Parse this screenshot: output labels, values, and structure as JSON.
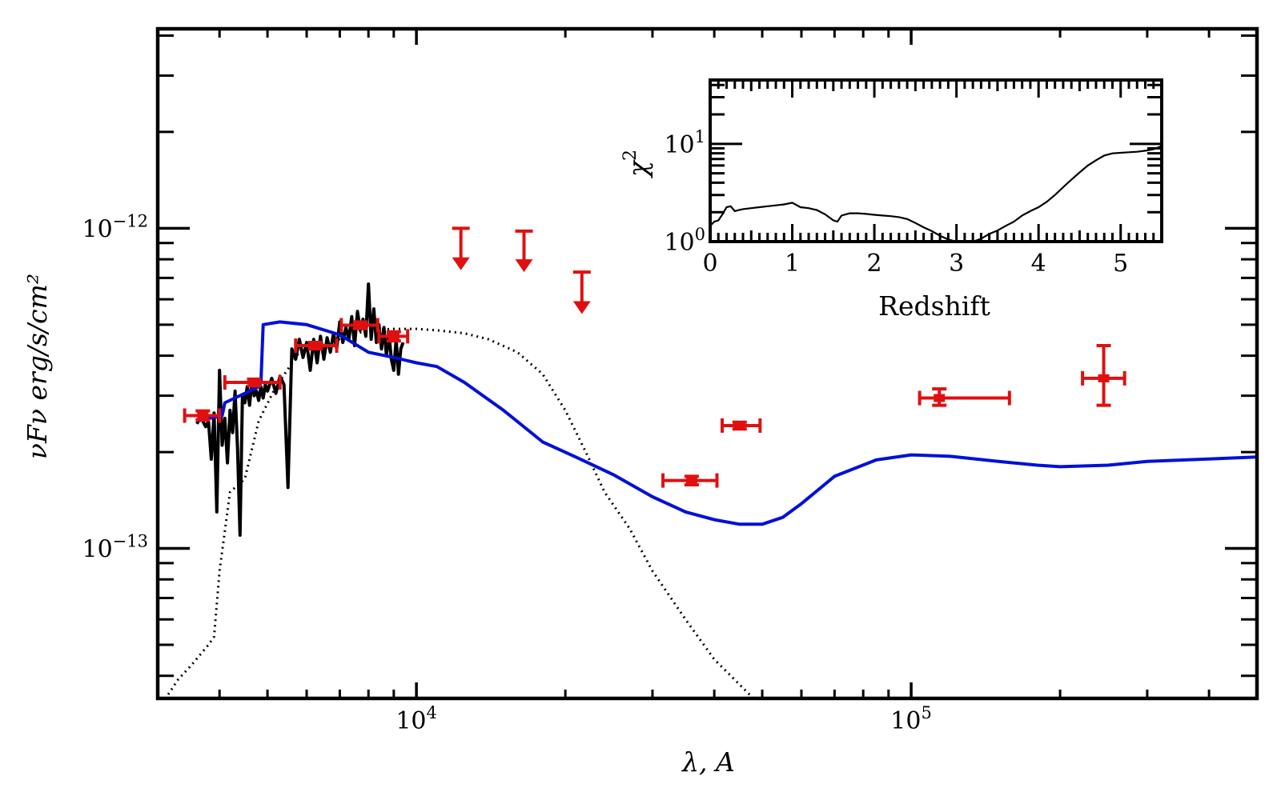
{
  "chart_data": [
    {
      "type": "scatter",
      "title": "",
      "xlabel": "λ, A",
      "ylabel": "νFν erg/s/cm²",
      "xscale": "log",
      "yscale": "log",
      "xlim": [
        3000,
        500000
      ],
      "ylim": [
        3.4e-14,
        4.2e-12
      ],
      "x_ticklabels": [
        {
          "value": 10000,
          "base": "10",
          "exp": "4"
        },
        {
          "value": 100000,
          "base": "10",
          "exp": "5"
        }
      ],
      "y_ticklabels": [
        {
          "value": 1e-12,
          "base": "10",
          "exp": "−12"
        },
        {
          "value": 1e-13,
          "base": "10",
          "exp": "−13"
        }
      ],
      "grid": false,
      "series": [
        {
          "style": "red points with error bars",
          "color": "#e01010",
          "points": [
            {
              "x": 3700,
              "y": 2.6e-13,
              "xlo": 3400,
              "xhi": 4000,
              "ylo": 2.52e-13,
              "yhi": 2.69e-13
            },
            {
              "x": 4700,
              "y": 3.3e-13,
              "xlo": 4100,
              "xhi": 5300,
              "ylo": 3.22e-13,
              "yhi": 3.38e-13
            },
            {
              "x": 6250,
              "y": 4.3e-13,
              "xlo": 5700,
              "xhi": 6900,
              "ylo": 4.2e-13,
              "yhi": 4.4e-13
            },
            {
              "x": 7700,
              "y": 4.98e-13,
              "xlo": 7050,
              "xhi": 8350,
              "ylo": 4.86e-13,
              "yhi": 5.1e-13
            },
            {
              "x": 9000,
              "y": 4.6e-13,
              "xlo": 8400,
              "xhi": 9600,
              "ylo": 4.45e-13,
              "yhi": 4.75e-13
            },
            {
              "x": 36000,
              "y": 1.63e-13,
              "xlo": 31500,
              "xhi": 40500,
              "ylo": 1.58e-13,
              "yhi": 1.68e-13
            },
            {
              "x": 45000,
              "y": 2.42e-13,
              "xlo": 41500,
              "xhi": 49500,
              "ylo": 2.36e-13,
              "yhi": 2.48e-13
            },
            {
              "x": 114000,
              "y": 2.95e-13,
              "xlo": 104000,
              "xhi": 158000,
              "ylo": 2.8e-13,
              "yhi": 3.15e-13
            },
            {
              "x": 245000,
              "y": 3.4e-13,
              "xlo": 222000,
              "xhi": 270000,
              "ylo": 2.8e-13,
              "yhi": 4.3e-13
            }
          ]
        },
        {
          "style": "red upper-limit arrows",
          "color": "#e01010",
          "points": [
            {
              "x": 12300,
              "y": 1e-12,
              "y_arrow_tip": 7.4e-13
            },
            {
              "x": 16500,
              "y": 9.8e-13,
              "y_arrow_tip": 7.3e-13
            },
            {
              "x": 21600,
              "y": 7.3e-13,
              "y_arrow_tip": 5.4e-13
            }
          ]
        },
        {
          "style": "blue model line",
          "color": "#0010d8",
          "x": [
            3600,
            4050,
            4100,
            4800,
            4850,
            4900,
            5300,
            6000,
            7000,
            8000,
            9000,
            10000,
            11000,
            12500,
            15000,
            18000,
            21000,
            25000,
            30000,
            35000,
            40000,
            45000,
            50000,
            55000,
            60000,
            70000,
            85000,
            100000,
            120000,
            150000,
            180000,
            200000,
            250000,
            300000,
            500000
          ],
          "y": [
            2.5e-13,
            2.6e-13,
            2.85e-13,
            3.2e-13,
            3.3e-13,
            5e-13,
            5.1e-13,
            5e-13,
            4.65e-13,
            4.1e-13,
            3.95e-13,
            3.8e-13,
            3.7e-13,
            3.3e-13,
            2.7e-13,
            2.15e-13,
            1.93e-13,
            1.7e-13,
            1.45e-13,
            1.3e-13,
            1.23e-13,
            1.19e-13,
            1.19e-13,
            1.25e-13,
            1.38e-13,
            1.68e-13,
            1.89e-13,
            1.96e-13,
            1.94e-13,
            1.87e-13,
            1.82e-13,
            1.8e-13,
            1.82e-13,
            1.87e-13,
            1.93e-13
          ]
        },
        {
          "style": "black dotted line",
          "color": "#000000",
          "x": [
            3150,
            3300,
            3500,
            3800,
            3900,
            4000,
            4200,
            4500,
            4800,
            5200,
            5800,
            6500,
            7200,
            8000,
            9000,
            10000,
            11000,
            12500,
            14000,
            16000,
            18000,
            20000,
            22000,
            24000,
            27000,
            30000,
            35000,
            40000,
            48000
          ],
          "y": [
            3.5e-14,
            3.9e-14,
            4.3e-14,
            5e-14,
            5.3e-14,
            8.5e-14,
            1.5e-13,
            1.65e-13,
            2.5e-13,
            3.2e-13,
            4.1e-13,
            4.3e-13,
            4.6e-13,
            4.8e-13,
            4.85e-13,
            4.85e-13,
            4.8e-13,
            4.7e-13,
            4.5e-13,
            4.1e-13,
            3.5e-13,
            2.7e-13,
            2e-13,
            1.5e-13,
            1.15e-13,
            8.5e-14,
            6e-14,
            4.5e-14,
            3.4e-14
          ]
        },
        {
          "style": "black observed spectrum",
          "color": "#000000",
          "x": [
            3600,
            3650,
            3700,
            3750,
            3800,
            3850,
            3900,
            3950,
            4000,
            4050,
            4100,
            4150,
            4200,
            4250,
            4300,
            4350,
            4400,
            4450,
            4500,
            4550,
            4600,
            4650,
            4700,
            4750,
            4800,
            4850,
            4900,
            4950,
            5000,
            5100,
            5200,
            5300,
            5400,
            5500,
            5600,
            5700,
            5800,
            5900,
            6000,
            6100,
            6200,
            6300,
            6400,
            6500,
            6600,
            6700,
            6800,
            6900,
            7000,
            7100,
            7200,
            7300,
            7400,
            7500,
            7600,
            7700,
            7800,
            7900,
            8000,
            8100,
            8200,
            8300,
            8400,
            8500,
            8600,
            8700,
            8800,
            8900,
            9000,
            9100,
            9200,
            9300,
            9400
          ],
          "y": [
            2.45e-13,
            2.55e-13,
            2.5e-13,
            2.4e-13,
            2.5e-13,
            1.9e-13,
            2.65e-13,
            1.3e-13,
            3.6e-13,
            2.1e-13,
            2.55e-13,
            1.85e-13,
            2.7e-13,
            2.3e-13,
            3.1e-13,
            2.05e-13,
            1.1e-13,
            3e-13,
            2.85e-13,
            3.2e-13,
            2.8e-13,
            3.3e-13,
            3e-13,
            3.1e-13,
            2.9e-13,
            3.2e-13,
            2.95e-13,
            3.25e-13,
            3.1e-13,
            3.4e-13,
            3.05e-13,
            3.45e-13,
            3.25e-13,
            1.55e-13,
            4.2e-13,
            3.9e-13,
            4.5e-13,
            3.95e-13,
            4.4e-13,
            3.6e-13,
            4.5e-13,
            3.8e-13,
            4.6e-13,
            3.9e-13,
            4.55e-13,
            4.1e-13,
            4.7e-13,
            4.2e-13,
            5.1e-13,
            4.4e-13,
            4.9e-13,
            4.5e-13,
            5.3e-13,
            4.3e-13,
            5.5e-13,
            4.8e-13,
            5.2e-13,
            4.6e-13,
            6.7e-13,
            4.5e-13,
            5.6e-13,
            4.4e-13,
            5e-13,
            4.2e-13,
            4.9e-13,
            4e-13,
            4.7e-13,
            3.9e-13,
            3.6e-13,
            4.5e-13,
            3.5e-13,
            4.2e-13,
            4.4e-13
          ]
        }
      ]
    },
    {
      "type": "line",
      "title": "",
      "xlabel": "Redshift",
      "ylabel": "χ",
      "ylabel_sup": "2",
      "yscale": "log",
      "xlim": [
        0,
        5.5
      ],
      "ylim": [
        1.0,
        45
      ],
      "x_ticklabels": [
        "0",
        "1",
        "2",
        "3",
        "4",
        "5"
      ],
      "y_ticklabels": [
        {
          "value": 1,
          "base": "10",
          "exp": "0"
        },
        {
          "value": 10,
          "base": "10",
          "exp": "1"
        }
      ],
      "grid": false,
      "series": [
        {
          "color": "#000000",
          "x": [
            0.0,
            0.05,
            0.1,
            0.15,
            0.2,
            0.25,
            0.3,
            0.35,
            0.4,
            0.5,
            0.6,
            0.7,
            0.8,
            0.9,
            1.0,
            1.1,
            1.2,
            1.3,
            1.4,
            1.5,
            1.55,
            1.6,
            1.7,
            1.8,
            1.9,
            2.0,
            2.1,
            2.2,
            2.3,
            2.4,
            2.5,
            2.6,
            2.7,
            2.8,
            2.9,
            3.0,
            3.1,
            3.2,
            3.3,
            3.4,
            3.5,
            3.6,
            3.7,
            3.8,
            3.9,
            4.0,
            4.1,
            4.2,
            4.3,
            4.4,
            4.5,
            4.6,
            4.7,
            4.8,
            4.9,
            5.0,
            5.1,
            5.2,
            5.3,
            5.4,
            5.5
          ],
          "y": [
            1.45,
            1.6,
            1.65,
            1.9,
            2.25,
            2.3,
            2.05,
            2.1,
            2.15,
            2.2,
            2.25,
            2.3,
            2.35,
            2.4,
            2.5,
            2.25,
            2.2,
            2.1,
            1.9,
            1.65,
            1.6,
            1.85,
            1.95,
            1.95,
            1.92,
            1.88,
            1.85,
            1.82,
            1.78,
            1.7,
            1.55,
            1.4,
            1.28,
            1.15,
            1.05,
            1.0,
            0.98,
            1.0,
            1.07,
            1.2,
            1.3,
            1.45,
            1.6,
            1.85,
            2.05,
            2.25,
            2.55,
            3.0,
            3.6,
            4.3,
            5.1,
            6.0,
            6.8,
            7.6,
            8.0,
            8.1,
            8.2,
            8.3,
            8.5,
            8.8,
            9.5
          ]
        }
      ]
    }
  ]
}
